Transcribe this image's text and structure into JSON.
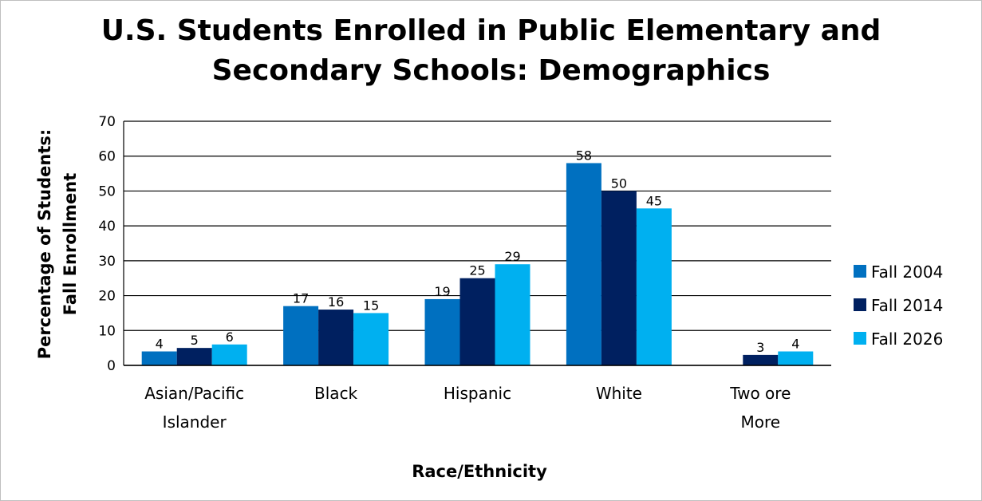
{
  "chart_data": {
    "type": "bar",
    "title_lines": [
      "U.S. Students Enrolled in Public Elementary and",
      "Secondary Schools: Demographics"
    ],
    "categories": [
      [
        "Asian/Pacific",
        "Islander"
      ],
      [
        "Black"
      ],
      [
        "Hispanic"
      ],
      [
        "White"
      ],
      [
        "Two ore",
        "More"
      ]
    ],
    "series": [
      {
        "name": "Fall 2004",
        "color": "#0070c0",
        "values": [
          4,
          17,
          19,
          58,
          null
        ]
      },
      {
        "name": "Fall 2014",
        "color": "#002060",
        "values": [
          5,
          16,
          25,
          50,
          3
        ]
      },
      {
        "name": "Fall 2026",
        "color": "#00b0f0",
        "values": [
          6,
          15,
          29,
          45,
          4
        ]
      }
    ],
    "xlabel": "Race/Ethnicity",
    "ylabel_lines": [
      "Percentage of Students:",
      "Fall Enrollment"
    ],
    "ylim": [
      0,
      70
    ],
    "yticks": [
      0,
      10,
      20,
      30,
      40,
      50,
      60,
      70
    ],
    "grid": true,
    "legend_position": "right"
  }
}
